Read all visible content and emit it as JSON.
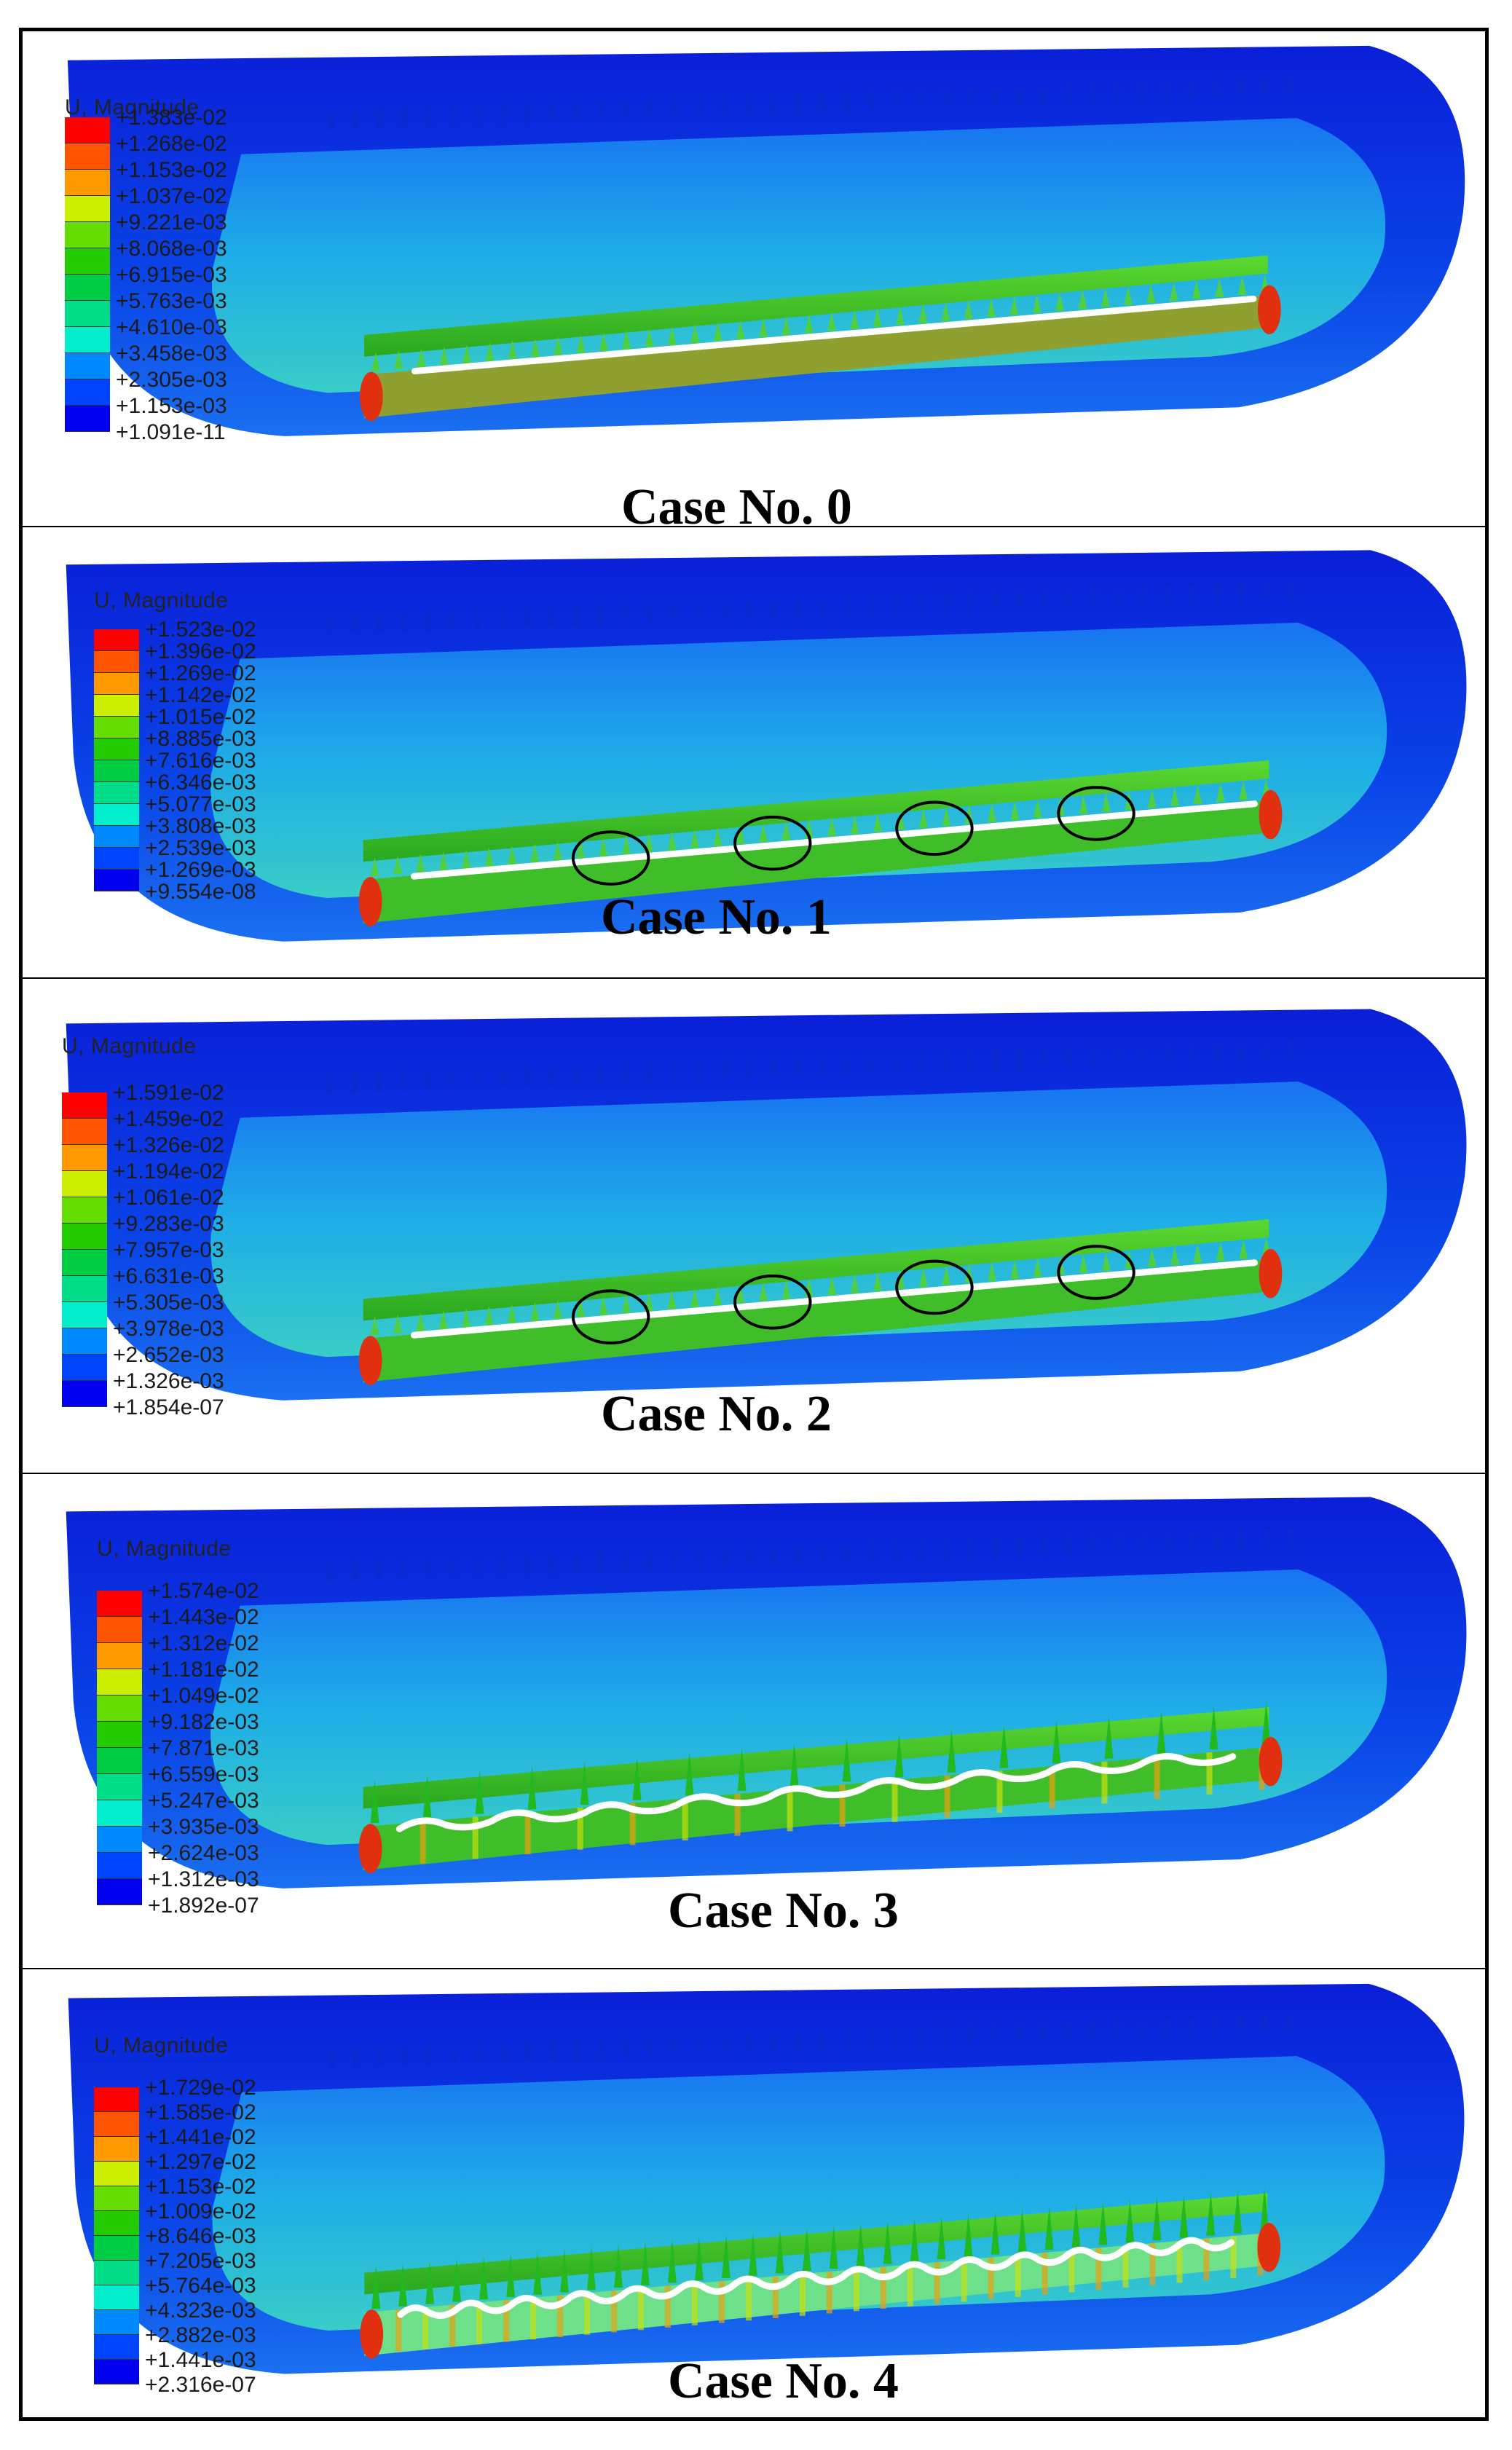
{
  "legend_title": "U, Magnitude",
  "legend_colors": [
    "#ff0000",
    "#ff5500",
    "#ff9900",
    "#ffcc00",
    "#ccee00",
    "#66dd00",
    "#22cc00",
    "#00cc44",
    "#00dd88",
    "#00eecc",
    "#00ccff",
    "#0088ff",
    "#0044ff",
    "#0000ee"
  ],
  "panels": [
    {
      "caption": "Case No. 0",
      "scale": [
        "+1.383e-02",
        "+1.268e-02",
        "+1.153e-02",
        "+1.037e-02",
        "+9.221e-03",
        "+8.068e-03",
        "+6.915e-03",
        "+5.763e-03",
        "+4.610e-03",
        "+3.458e-03",
        "+2.305e-03",
        "+1.153e-03",
        "+1.091e-11"
      ]
    },
    {
      "caption": "Case No. 1",
      "scale": [
        "+1.523e-02",
        "+1.396e-02",
        "+1.269e-02",
        "+1.142e-02",
        "+1.015e-02",
        "+8.885e-03",
        "+7.616e-03",
        "+6.346e-03",
        "+5.077e-03",
        "+3.808e-03",
        "+2.539e-03",
        "+1.269e-03",
        "+9.554e-08"
      ]
    },
    {
      "caption": "Case No. 2",
      "scale": [
        "+1.591e-02",
        "+1.459e-02",
        "+1.326e-02",
        "+1.194e-02",
        "+1.061e-02",
        "+9.283e-03",
        "+7.957e-03",
        "+6.631e-03",
        "+5.305e-03",
        "+3.978e-03",
        "+2.652e-03",
        "+1.326e-03",
        "+1.854e-07"
      ]
    },
    {
      "caption": "Case No. 3",
      "scale": [
        "+1.574e-02",
        "+1.443e-02",
        "+1.312e-02",
        "+1.181e-02",
        "+1.049e-02",
        "+9.182e-03",
        "+7.871e-03",
        "+6.559e-03",
        "+5.247e-03",
        "+3.935e-03",
        "+2.624e-03",
        "+1.312e-03",
        "+1.892e-07"
      ]
    },
    {
      "caption": "Case No. 4",
      "scale": [
        "+1.729e-02",
        "+1.585e-02",
        "+1.441e-02",
        "+1.297e-02",
        "+1.153e-02",
        "+1.009e-02",
        "+8.646e-03",
        "+7.205e-03",
        "+5.764e-03",
        "+4.323e-03",
        "+2.882e-03",
        "+1.441e-03",
        "+2.316e-07"
      ]
    }
  ]
}
